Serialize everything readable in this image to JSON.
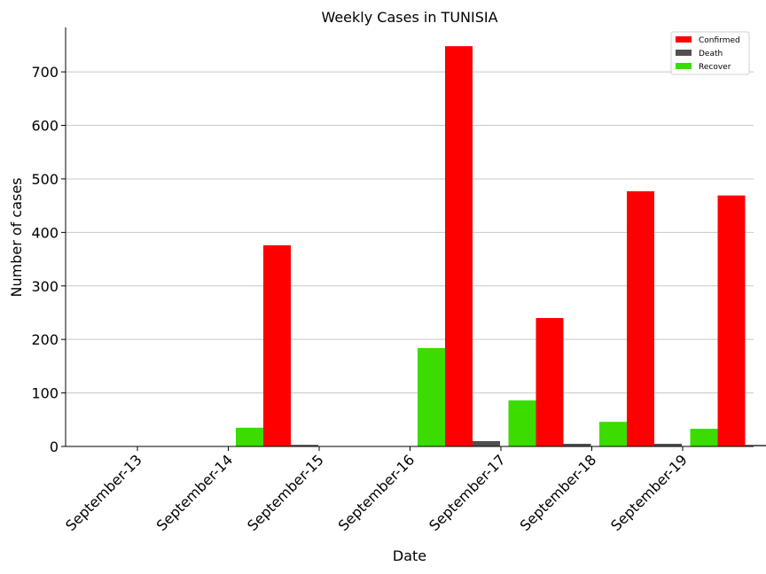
{
  "chart_data": {
    "type": "bar",
    "title": "Weekly Cases in TUNISIA",
    "xlabel": "Date",
    "ylabel": "Number of cases",
    "categories": [
      "September-13",
      "September-14",
      "September-15",
      "September-16",
      "September-17",
      "September-18",
      "September-19"
    ],
    "series": [
      {
        "name": "Recover",
        "color": "#3cdc00",
        "values": [
          0,
          35,
          0,
          184,
          86,
          46,
          33
        ]
      },
      {
        "name": "Confirmed",
        "color": "#ff0000",
        "values": [
          0,
          376,
          0,
          748,
          240,
          477,
          469
        ]
      },
      {
        "name": "Death",
        "color": "#505050",
        "values": [
          0,
          3,
          0,
          10,
          5,
          5,
          3
        ]
      }
    ],
    "legend_order": [
      "Confirmed",
      "Death",
      "Recover"
    ],
    "legend_position": "top-right",
    "ylim": [
      0,
      783
    ],
    "yticks": [
      0,
      100,
      200,
      300,
      400,
      500,
      600,
      700
    ],
    "grid": "horizontal"
  }
}
